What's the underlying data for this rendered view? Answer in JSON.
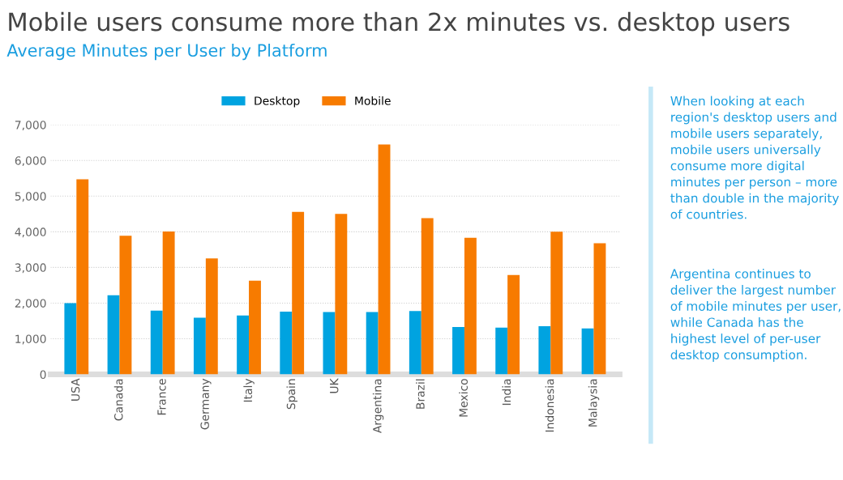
{
  "chart_data": {
    "type": "bar",
    "title": "Mobile users consume more than 2x minutes vs. desktop users",
    "subtitle": "Average Minutes per User by Platform",
    "categories": [
      "USA",
      "Canada",
      "France",
      "Germany",
      "Italy",
      "Spain",
      "UK",
      "Argentina",
      "Brazil",
      "Mexico",
      "India",
      "Indonesia",
      "Malaysia"
    ],
    "series": [
      {
        "name": "Desktop",
        "color": "#00a3e0",
        "values": [
          2000,
          2220,
          1790,
          1590,
          1650,
          1760,
          1750,
          1750,
          1780,
          1330,
          1310,
          1350,
          1290
        ]
      },
      {
        "name": "Mobile",
        "color": "#f77b00",
        "values": [
          5470,
          3890,
          4010,
          3250,
          2630,
          4560,
          4500,
          6450,
          4380,
          3830,
          2790,
          4000,
          3680
        ]
      }
    ],
    "ylim": [
      0,
      7000
    ],
    "yticks": [
      0,
      {
        "value": 1000,
        "label": "1,000"
      },
      {
        "value": 2000,
        "label": "2,000"
      },
      {
        "value": 3000,
        "label": "3,000"
      },
      {
        "value": 4000,
        "label": "4,000"
      },
      {
        "value": 5000,
        "label": "5,000"
      },
      {
        "value": 6000,
        "label": "6,000"
      },
      {
        "value": 7000,
        "label": "7,000"
      }
    ],
    "grid": "y",
    "legend": "top",
    "annotations": [
      "When looking at each region's desktop users and mobile users separately, mobile users universally consume more digital minutes per person – more than double in the majority of countries.",
      "Argentina continues to deliver the largest number of mobile minutes per user, while Canada has the highest level of per-user desktop consumption."
    ]
  }
}
